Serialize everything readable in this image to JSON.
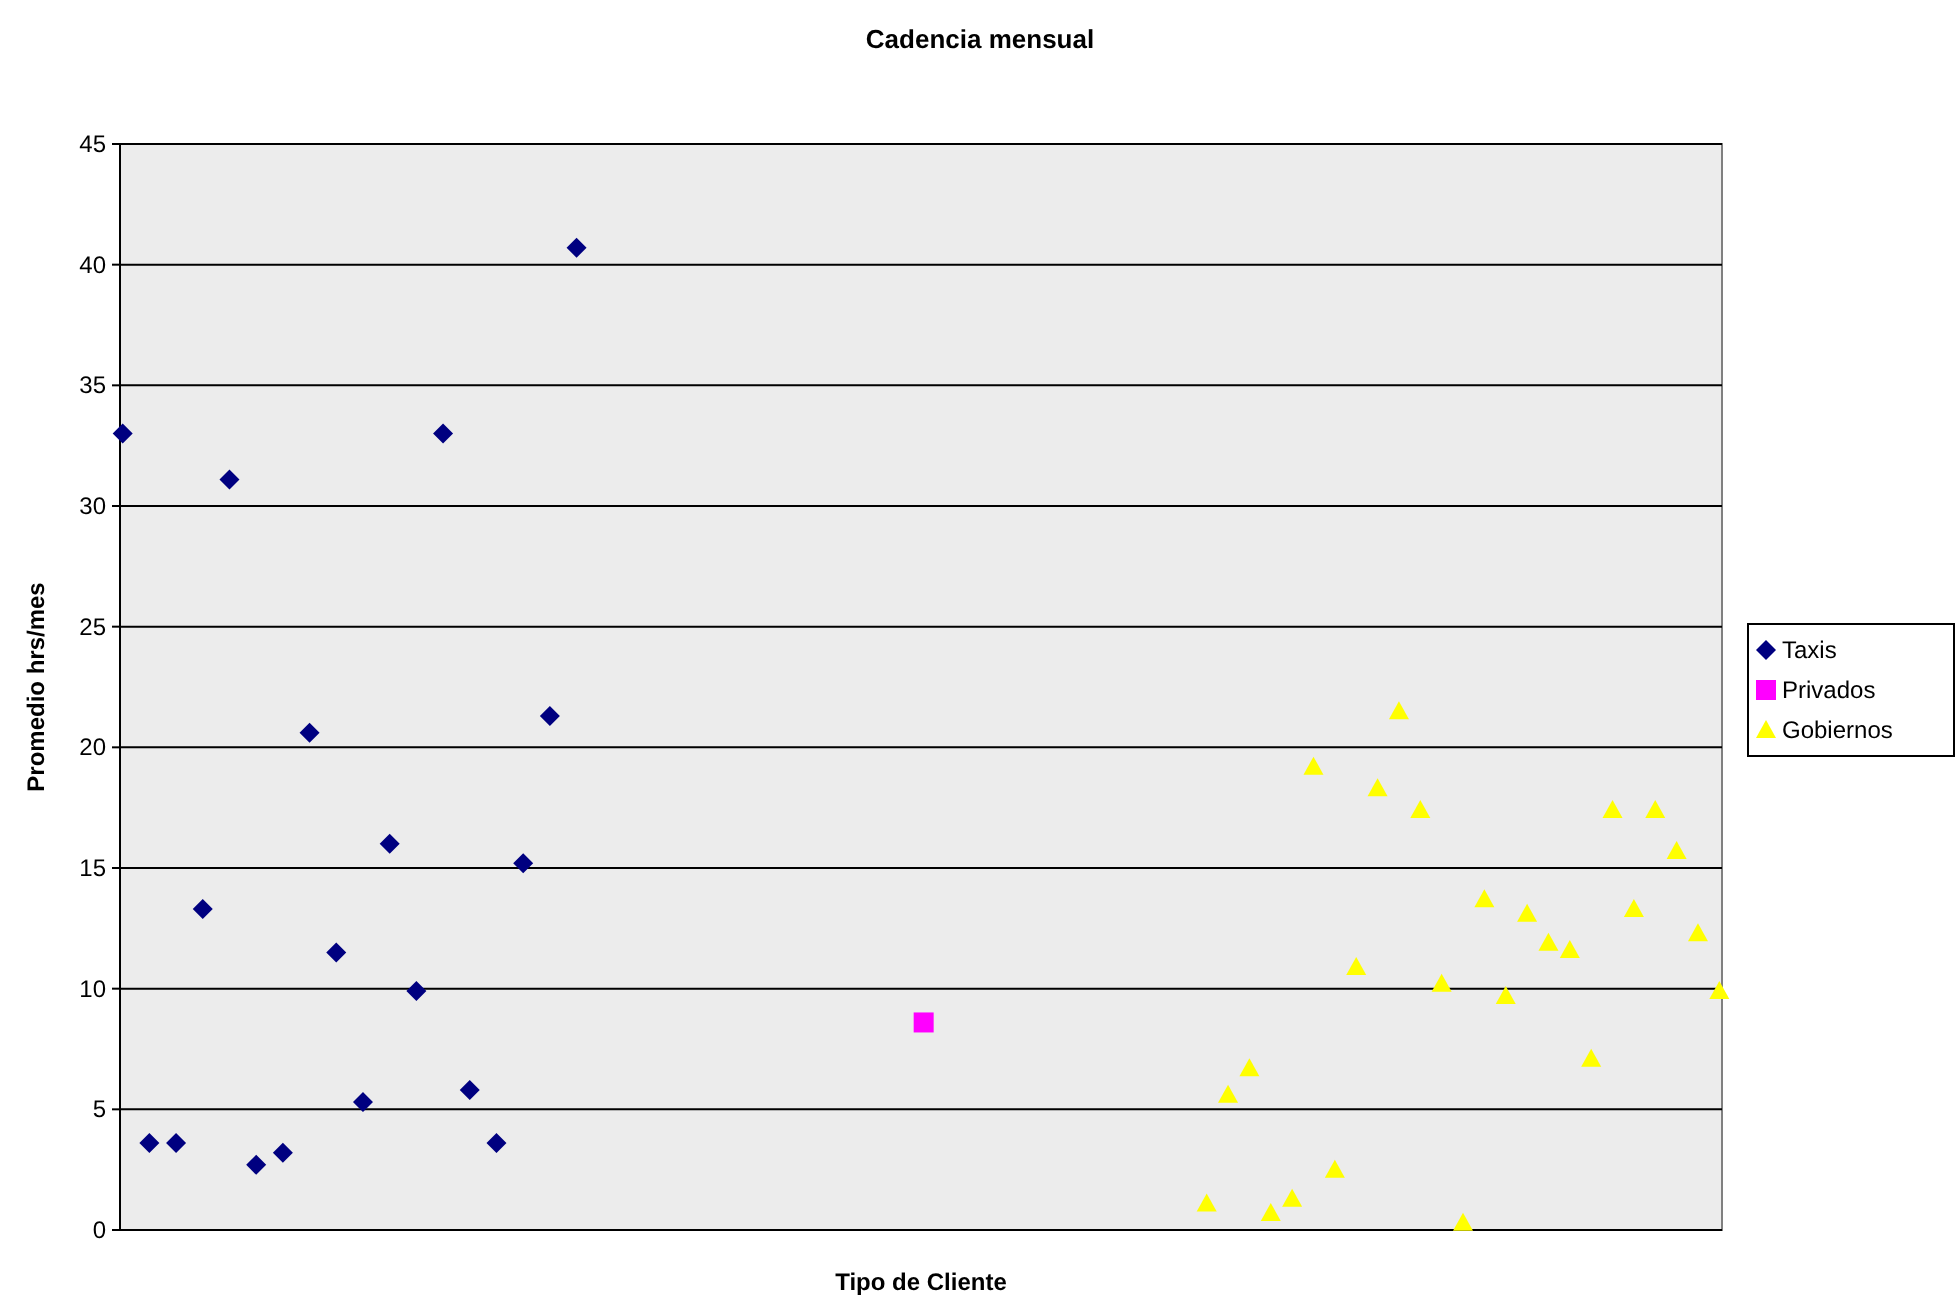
{
  "chart_data": {
    "type": "scatter",
    "title": "Cadencia mensual",
    "xlabel": "Tipo de Cliente",
    "ylabel": "Promedio hrs/mes",
    "categories": [
      null,
      null,
      null,
      null,
      null,
      null,
      null,
      null,
      null,
      null,
      null,
      null,
      null,
      null,
      null,
      null,
      null,
      null,
      null,
      null,
      null,
      null,
      null,
      null,
      null,
      null,
      null,
      null,
      null,
      null,
      null,
      null,
      null,
      null,
      null,
      null,
      null,
      null,
      null,
      null,
      null,
      null,
      null,
      null,
      null,
      null,
      null,
      null,
      null,
      null,
      null,
      null,
      null,
      null,
      null,
      null,
      null,
      null,
      null,
      null,
      null,
      null,
      null,
      null,
      null,
      null,
      null,
      null,
      null,
      null,
      null,
      null,
      null,
      null,
      null,
      null,
      null,
      null,
      null,
      null,
      null,
      null,
      null,
      null,
      null,
      null,
      null,
      null,
      null,
      null,
      null,
      null,
      null,
      null,
      null,
      null,
      null,
      null,
      null,
      null,
      null,
      null,
      null,
      null,
      null,
      null,
      null,
      null,
      null,
      null,
      null,
      null,
      null,
      null,
      null,
      null,
      null,
      null,
      null,
      null,
      null,
      null,
      null,
      null,
      null,
      null,
      null,
      null,
      null,
      null,
      null,
      null,
      null,
      null,
      null,
      null,
      null,
      null,
      null,
      null,
      null,
      null,
      null,
      null,
      null,
      null,
      null,
      null,
      null,
      null,
      null,
      null,
      null,
      null,
      null,
      null,
      null,
      null,
      null,
      null,
      null,
      null,
      null,
      null,
      null,
      null,
      null,
      null,
      null,
      null,
      null,
      null,
      null,
      null,
      null,
      null,
      null,
      null,
      null,
      null,
      null,
      null,
      null,
      null,
      null,
      null,
      null,
      null,
      null,
      null,
      null,
      null,
      null,
      null,
      null,
      null,
      null,
      null,
      null,
      null,
      null,
      null,
      null,
      null,
      null,
      null,
      null,
      null,
      null,
      null,
      null,
      null,
      null,
      null,
      null,
      null,
      null,
      null,
      null,
      null,
      null,
      null,
      null,
      null,
      null,
      null,
      null,
      null,
      null,
      null,
      null,
      null,
      null,
      null,
      null,
      null,
      null,
      null,
      null,
      null,
      null,
      null,
      null,
      null,
      null,
      null,
      null,
      null,
      null,
      null,
      null,
      null,
      null,
      null,
      null,
      null,
      null,
      null,
      null,
      null,
      null,
      null,
      null,
      null,
      null,
      null,
      null,
      null,
      null,
      null,
      null,
      null,
      null,
      null,
      null,
      null,
      null,
      null,
      null,
      null,
      null,
      null,
      null,
      null,
      null,
      null,
      null,
      null,
      null,
      null,
      null,
      null,
      null,
      null,
      null,
      null,
      null,
      null,
      null,
      null
    ],
    "ylim": [
      0,
      45
    ],
    "yticks": [
      0,
      5,
      10,
      15,
      20,
      25,
      30,
      35,
      40,
      45
    ],
    "tick_labels": "y",
    "grid": "y",
    "legend": "right",
    "series": [
      {
        "name": "Taxis",
        "color": "#000080",
        "marker": "diamond",
        "values": [
          33.0,
          null,
          null,
          null,
          null,
          3.6,
          null,
          null,
          null,
          null,
          3.6,
          null,
          null,
          null,
          null,
          13.3,
          null,
          null,
          null,
          null,
          31.1,
          null,
          null,
          null,
          null,
          2.7,
          null,
          null,
          null,
          null,
          3.2,
          null,
          null,
          null,
          null,
          20.6,
          null,
          null,
          null,
          null,
          11.5,
          null,
          null,
          null,
          null,
          5.3,
          null,
          null,
          null,
          null,
          16.0,
          null,
          null,
          null,
          null,
          9.9,
          null,
          null,
          null,
          null,
          33.0,
          null,
          null,
          null,
          null,
          5.8,
          null,
          null,
          null,
          null,
          3.6,
          null,
          null,
          null,
          null,
          15.2,
          null,
          null,
          null,
          null,
          21.3,
          null,
          null,
          null,
          null,
          40.7,
          null,
          null,
          null,
          null,
          null,
          null,
          null,
          null,
          null,
          null,
          null,
          null,
          null,
          null,
          null,
          null,
          null,
          null,
          null,
          null,
          null,
          null,
          null,
          null,
          null,
          null,
          null,
          null,
          null,
          null,
          null,
          null,
          null,
          null,
          null,
          null,
          null,
          null,
          null,
          null,
          null,
          null,
          null,
          null,
          null,
          null,
          null,
          null,
          null,
          null,
          null,
          null,
          null,
          null,
          null,
          null,
          null,
          null,
          null,
          null,
          null,
          null,
          null,
          null,
          null,
          null,
          null,
          null,
          null,
          null,
          null,
          null,
          null,
          null,
          null,
          null,
          null,
          null,
          null,
          null,
          null,
          null,
          null,
          null,
          null,
          null,
          null,
          null,
          null,
          null,
          null,
          null,
          null,
          null,
          null,
          null,
          null,
          null,
          null,
          null,
          null,
          null,
          null,
          null,
          null,
          null,
          null,
          null,
          null,
          null,
          null,
          null,
          null,
          null,
          null,
          null,
          null,
          null,
          null,
          null,
          null,
          null,
          null,
          null,
          null,
          null,
          null,
          null,
          null,
          null,
          null,
          null,
          null,
          null,
          null,
          null,
          null,
          null,
          null,
          null,
          null,
          null,
          null,
          null,
          null,
          null,
          null,
          null,
          null,
          null,
          null,
          null,
          null,
          null,
          null,
          null,
          null,
          null,
          null,
          null,
          null,
          null,
          null,
          null,
          null,
          null,
          null,
          null,
          null,
          null,
          null,
          null,
          null,
          null,
          null,
          null,
          null,
          null,
          null,
          null,
          null,
          null,
          null,
          null,
          null,
          null,
          null,
          null,
          null,
          null,
          null,
          null,
          null,
          null,
          null,
          null,
          null,
          null,
          null,
          null,
          null,
          null,
          null,
          null,
          null,
          null,
          null,
          null,
          null,
          null,
          null,
          null,
          null,
          null
        ]
      },
      {
        "name": "Privados",
        "color": "#ff00ff",
        "marker": "square",
        "values": [
          null,
          null,
          null,
          null,
          null,
          null,
          null,
          null,
          null,
          null,
          null,
          null,
          null,
          null,
          null,
          null,
          null,
          null,
          null,
          null,
          null,
          null,
          null,
          null,
          null,
          null,
          null,
          null,
          null,
          null,
          null,
          null,
          null,
          null,
          null,
          null,
          null,
          null,
          null,
          null,
          null,
          null,
          null,
          null,
          null,
          null,
          null,
          null,
          null,
          null,
          null,
          null,
          null,
          null,
          null,
          null,
          null,
          null,
          null,
          null,
          null,
          null,
          null,
          null,
          null,
          null,
          null,
          null,
          null,
          null,
          null,
          null,
          null,
          null,
          null,
          null,
          null,
          null,
          null,
          null,
          null,
          null,
          null,
          null,
          null,
          null,
          null,
          null,
          null,
          null,
          null,
          null,
          null,
          null,
          null,
          null,
          null,
          null,
          null,
          null,
          null,
          null,
          null,
          null,
          null,
          null,
          null,
          null,
          null,
          null,
          null,
          null,
          null,
          null,
          null,
          null,
          null,
          null,
          null,
          null,
          null,
          null,
          null,
          null,
          null,
          null,
          null,
          null,
          null,
          null,
          null,
          null,
          null,
          null,
          null,
          null,
          null,
          null,
          null,
          null,
          null,
          null,
          null,
          null,
          null,
          null,
          null,
          null,
          null,
          null,
          8.6,
          null,
          null,
          null,
          null,
          null,
          null,
          null,
          null,
          null,
          null,
          null,
          null,
          null,
          null,
          null,
          null,
          null,
          null,
          null,
          null,
          null,
          null,
          null,
          null,
          null,
          null,
          null,
          null,
          null,
          null,
          null,
          null,
          null,
          null,
          null,
          null,
          null,
          null,
          null,
          null,
          null,
          null,
          null,
          null,
          null,
          null,
          null,
          null,
          null,
          null,
          null,
          null,
          null,
          null,
          null,
          null,
          null,
          null,
          null,
          null,
          null,
          null,
          null,
          null,
          null,
          null,
          null,
          null,
          null,
          null,
          null,
          null,
          null,
          null,
          null,
          null,
          null,
          null,
          null,
          null,
          null,
          null,
          null,
          null,
          null,
          null,
          null,
          null,
          null,
          null,
          null,
          null,
          null,
          null,
          null,
          null,
          null,
          null,
          null,
          null,
          null,
          null,
          null,
          null,
          null,
          null,
          null,
          null,
          null,
          null,
          null,
          null,
          null,
          null,
          null,
          null,
          null,
          null,
          null,
          null,
          null,
          null,
          null,
          null,
          null,
          null,
          null,
          null,
          null,
          null,
          null,
          null,
          null,
          null,
          null,
          null,
          null,
          null,
          null,
          null,
          null,
          null,
          null,
          null,
          null,
          null,
          null,
          null,
          null
        ]
      },
      {
        "name": "Gobiernos",
        "color": "#ffff00",
        "marker": "triangle",
        "values": [
          null,
          null,
          null,
          null,
          null,
          null,
          null,
          null,
          null,
          null,
          null,
          null,
          null,
          null,
          null,
          null,
          null,
          null,
          null,
          null,
          null,
          null,
          null,
          null,
          null,
          null,
          null,
          null,
          null,
          null,
          null,
          null,
          null,
          null,
          null,
          null,
          null,
          null,
          null,
          null,
          null,
          null,
          null,
          null,
          null,
          null,
          null,
          null,
          null,
          null,
          null,
          null,
          null,
          null,
          null,
          null,
          null,
          null,
          null,
          null,
          null,
          null,
          null,
          null,
          null,
          null,
          null,
          null,
          null,
          null,
          null,
          null,
          null,
          null,
          null,
          null,
          null,
          null,
          null,
          null,
          null,
          null,
          null,
          null,
          null,
          null,
          null,
          null,
          null,
          null,
          null,
          null,
          null,
          null,
          null,
          null,
          null,
          null,
          null,
          null,
          null,
          null,
          null,
          null,
          null,
          null,
          null,
          null,
          null,
          null,
          null,
          null,
          null,
          null,
          null,
          null,
          null,
          null,
          null,
          null,
          null,
          null,
          null,
          null,
          null,
          null,
          null,
          null,
          null,
          null,
          null,
          null,
          null,
          null,
          null,
          null,
          null,
          null,
          null,
          null,
          null,
          null,
          null,
          null,
          null,
          null,
          null,
          null,
          null,
          null,
          null,
          null,
          null,
          null,
          null,
          null,
          null,
          null,
          null,
          null,
          null,
          null,
          null,
          null,
          null,
          null,
          null,
          null,
          null,
          null,
          null,
          null,
          null,
          null,
          null,
          null,
          null,
          null,
          null,
          null,
          null,
          null,
          null,
          null,
          null,
          null,
          null,
          null,
          null,
          null,
          null,
          null,
          null,
          null,
          null,
          null,
          null,
          null,
          null,
          null,
          null,
          null,
          null,
          1.1,
          null,
          null,
          null,
          5.6,
          null,
          null,
          null,
          6.7,
          null,
          null,
          null,
          0.7,
          null,
          null,
          null,
          1.3,
          null,
          null,
          null,
          19.2,
          null,
          null,
          null,
          2.5,
          null,
          null,
          null,
          10.9,
          null,
          null,
          null,
          18.3,
          null,
          null,
          null,
          21.5,
          null,
          null,
          null,
          17.4,
          null,
          null,
          null,
          10.2,
          null,
          null,
          null,
          0.3,
          null,
          null,
          null,
          13.7,
          null,
          null,
          null,
          9.7,
          null,
          null,
          null,
          13.1,
          null,
          null,
          null,
          11.9,
          null,
          null,
          null,
          11.6,
          null,
          null,
          null,
          7.1,
          null,
          null,
          null,
          17.4,
          null,
          null,
          null,
          13.3,
          null,
          null,
          null,
          17.4,
          null,
          null,
          null,
          15.7,
          null,
          null,
          null,
          12.3,
          null,
          null,
          null,
          9.9
        ]
      }
    ]
  }
}
